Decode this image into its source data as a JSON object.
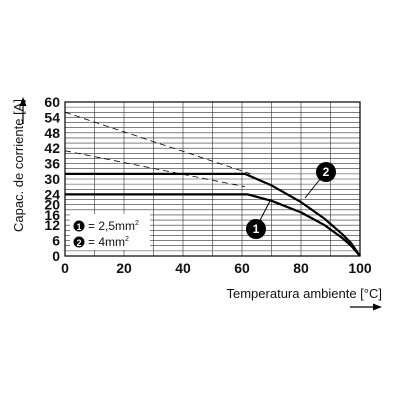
{
  "chart_data": {
    "type": "line",
    "title": "",
    "xlabel": "Temperatura ambiente [°C]",
    "ylabel": "Capac. de corriente [A]",
    "xlim": [
      0,
      100
    ],
    "ylim": [
      0,
      60
    ],
    "xticks": [
      0,
      20,
      40,
      60,
      80,
      100
    ],
    "yticks": [
      0,
      6,
      12,
      16,
      20,
      24,
      30,
      36,
      42,
      48,
      54,
      60
    ],
    "grid": true,
    "series": [
      {
        "marker": "1",
        "name": "2,5mm²",
        "color": "#000000",
        "x": [
          0,
          62,
          70,
          80,
          88,
          94,
          97,
          100
        ],
        "y": [
          24,
          24,
          21.5,
          17,
          12,
          7,
          4,
          0
        ]
      },
      {
        "marker": "2",
        "name": "4mm²",
        "color": "#000000",
        "x": [
          0,
          61,
          70,
          80,
          88,
          94,
          97,
          100
        ],
        "y": [
          32,
          32,
          27.5,
          21,
          14.5,
          8.5,
          5,
          0
        ]
      }
    ],
    "reference_lines": [
      {
        "style": "dashed",
        "x": [
          0,
          61
        ],
        "y": [
          41,
          27
        ]
      },
      {
        "style": "dashed",
        "x": [
          0,
          63
        ],
        "y": [
          56,
          32
        ]
      }
    ],
    "legend": {
      "placement": "bottom-left",
      "entries": [
        {
          "marker": "1",
          "text": "= 2,5mm"
        },
        {
          "marker": "2",
          "text": "= 4mm"
        }
      ],
      "superscript": "2"
    }
  }
}
